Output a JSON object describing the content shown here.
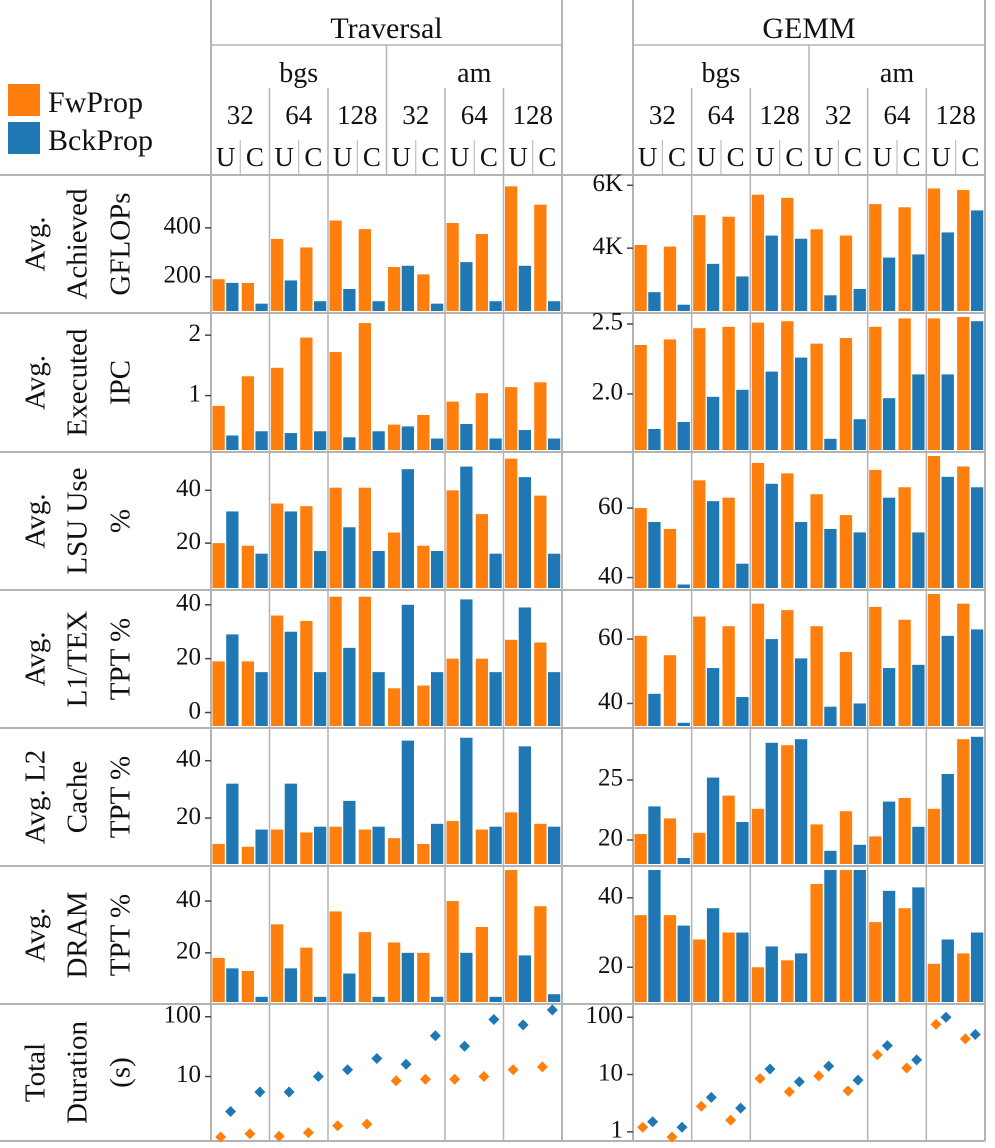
{
  "colors": {
    "fw": "#ff7f0e",
    "bck": "#1f77b4",
    "grid": "#b3b3b3"
  },
  "legend": [
    {
      "label": "FwProp",
      "color": "#ff7f0e"
    },
    {
      "label": "BckProp",
      "color": "#1f77b4"
    }
  ],
  "panels": [
    "Traversal",
    "GEMM"
  ],
  "datasets": [
    "bgs",
    "am"
  ],
  "batch_sizes": [
    "32",
    "64",
    "128"
  ],
  "modes": [
    "U",
    "C"
  ],
  "chart_data": {
    "type": "bar",
    "description_series": [
      "FwProp",
      "BckProp"
    ],
    "rows": [
      {
        "label_lines": [
          "Avg.",
          "Achieved",
          "GFLOPs"
        ],
        "panels": [
          {
            "panel": "Traversal",
            "scale": "linear",
            "ylim": [
              60,
              600
            ],
            "ticks": [
              {
                "v": 200,
                "t": "200"
              },
              {
                "v": 400,
                "t": "400"
              }
            ],
            "fw": [
              190,
              175,
              355,
              320,
              430,
              395,
              240,
              210,
              420,
              375,
              570,
              495
            ],
            "bck": [
              175,
              90,
              185,
              100,
              150,
              100,
              245,
              90,
              260,
              100,
              245,
              100
            ]
          },
          {
            "panel": "GEMM",
            "scale": "linear",
            "ylim": [
              2000,
              6200
            ],
            "ticks": [
              {
                "v": 4000,
                "t": "4K"
              },
              {
                "v": 6000,
                "t": "6K"
              }
            ],
            "fw": [
              4100,
              4050,
              5050,
              5000,
              5700,
              5600,
              4600,
              4400,
              5400,
              5300,
              5900,
              5850
            ],
            "bck": [
              2600,
              2200,
              3500,
              3100,
              4400,
              4300,
              2500,
              2700,
              3700,
              3800,
              4500,
              5200
            ]
          }
        ]
      },
      {
        "label_lines": [
          "Avg.",
          "Executed",
          "IPC"
        ],
        "panels": [
          {
            "panel": "Traversal",
            "scale": "linear",
            "ylim": [
              0.1,
              2.3
            ],
            "ticks": [
              {
                "v": 1,
                "t": "1"
              },
              {
                "v": 2,
                "t": "2"
              }
            ],
            "fw": [
              0.83,
              1.32,
              1.46,
              1.96,
              1.72,
              2.2,
              0.52,
              0.68,
              0.9,
              1.04,
              1.14,
              1.22
            ],
            "bck": [
              0.34,
              0.41,
              0.38,
              0.41,
              0.31,
              0.41,
              0.49,
              0.29,
              0.53,
              0.29,
              0.43,
              0.29
            ]
          },
          {
            "panel": "GEMM",
            "scale": "linear",
            "ylim": [
              1.6,
              2.55
            ],
            "ticks": [
              {
                "v": 2.0,
                "t": "2.0"
              },
              {
                "v": 2.5,
                "t": "2.5"
              }
            ],
            "fw": [
              2.35,
              2.39,
              2.47,
              2.48,
              2.51,
              2.52,
              2.36,
              2.4,
              2.48,
              2.54,
              2.54,
              2.57
            ],
            "bck": [
              1.75,
              1.8,
              1.98,
              2.03,
              2.16,
              2.26,
              1.68,
              1.82,
              1.97,
              2.14,
              2.14,
              2.52
            ]
          }
        ]
      },
      {
        "label_lines": [
          "Avg.",
          "LSU Use",
          "%"
        ],
        "panels": [
          {
            "panel": "Traversal",
            "scale": "linear",
            "ylim": [
              3,
              53
            ],
            "ticks": [
              {
                "v": 20,
                "t": "20"
              },
              {
                "v": 40,
                "t": "40"
              }
            ],
            "fw": [
              20,
              19,
              35,
              34,
              41,
              41,
              24,
              19,
              40,
              31,
              52,
              38
            ],
            "bck": [
              32,
              16,
              32,
              17,
              26,
              17,
              48,
              17,
              49,
              16,
              45,
              16
            ]
          },
          {
            "panel": "GEMM",
            "scale": "linear",
            "ylim": [
              37,
              75
            ],
            "ticks": [
              {
                "v": 40,
                "t": "40"
              },
              {
                "v": 60,
                "t": "60"
              }
            ],
            "fw": [
              60,
              54,
              68,
              63,
              73,
              70,
              64,
              58,
              71,
              66,
              75,
              72
            ],
            "bck": [
              56,
              38,
              62,
              44,
              67,
              56,
              54,
              53,
              63,
              53,
              69,
              66
            ]
          }
        ]
      },
      {
        "label_lines": [
          "Avg.",
          "L1/TEX",
          "TPT %"
        ],
        "panels": [
          {
            "panel": "Traversal",
            "scale": "linear",
            "ylim": [
              -5,
              44
            ],
            "ticks": [
              {
                "v": 0,
                "t": "0"
              },
              {
                "v": 20,
                "t": "20"
              },
              {
                "v": 40,
                "t": "40"
              }
            ],
            "fw": [
              19,
              19,
              36,
              34,
              43,
              43,
              9,
              10,
              20,
              20,
              27,
              26
            ],
            "bck": [
              29,
              15,
              30,
              15,
              24,
              15,
              40,
              15,
              42,
              15,
              39,
              15
            ]
          },
          {
            "panel": "GEMM",
            "scale": "linear",
            "ylim": [
              33,
              74
            ],
            "ticks": [
              {
                "v": 40,
                "t": "40"
              },
              {
                "v": 60,
                "t": "60"
              }
            ],
            "fw": [
              61,
              55,
              67,
              64,
              71,
              69,
              64,
              56,
              70,
              66,
              74,
              71
            ],
            "bck": [
              43,
              34,
              51,
              42,
              60,
              54,
              39,
              40,
              51,
              52,
              61,
              63
            ]
          }
        ]
      },
      {
        "label_lines": [
          "Avg. L2",
          "Cache",
          "TPT %"
        ],
        "panels": [
          {
            "panel": "Traversal",
            "scale": "linear",
            "ylim": [
              4,
              50
            ],
            "ticks": [
              {
                "v": 20,
                "t": "20"
              },
              {
                "v": 40,
                "t": "40"
              }
            ],
            "fw": [
              11,
              10,
              16,
              15,
              17,
              16,
              13,
              11,
              19,
              16,
              22,
              18
            ],
            "bck": [
              32,
              16,
              32,
              17,
              26,
              17,
              47,
              18,
              48,
              17,
              45,
              17
            ]
          },
          {
            "panel": "GEMM",
            "scale": "linear",
            "ylim": [
              18,
              29
            ],
            "ticks": [
              {
                "v": 20,
                "t": "20"
              },
              {
                "v": 25,
                "t": "25"
              }
            ],
            "fw": [
              20.5,
              21.8,
              20.6,
              23.7,
              22.6,
              27.9,
              21.3,
              22.4,
              20.3,
              23.5,
              22.6,
              28.4
            ],
            "bck": [
              22.8,
              18.5,
              25.2,
              21.5,
              28.1,
              28.4,
              19.1,
              19.6,
              23.2,
              21.1,
              25.5,
              28.6
            ]
          }
        ]
      },
      {
        "label_lines": [
          "Avg.",
          "DRAM",
          "TPT %"
        ],
        "panels": [
          {
            "panel": "Traversal",
            "scale": "linear",
            "ylim": [
              1,
              52
            ],
            "ticks": [
              {
                "v": 20,
                "t": "20"
              },
              {
                "v": 40,
                "t": "40"
              }
            ],
            "fw": [
              18,
              13,
              31,
              22,
              36,
              28,
              24,
              20,
              40,
              30,
              52,
              38
            ],
            "bck": [
              14,
              3,
              14,
              3,
              12,
              3,
              20,
              3,
              20,
              3,
              19,
              4
            ]
          },
          {
            "panel": "GEMM",
            "scale": "linear",
            "ylim": [
              10,
              48
            ],
            "ticks": [
              {
                "v": 20,
                "t": "20"
              },
              {
                "v": 40,
                "t": "40"
              }
            ],
            "fw": [
              35,
              35,
              28,
              30,
              20,
              22,
              44,
              48,
              33,
              37,
              21,
              24
            ],
            "bck": [
              48,
              32,
              37,
              30,
              26,
              24,
              50,
              50,
              42,
              43,
              28,
              30
            ]
          }
        ]
      },
      {
        "label_lines": [
          "Total",
          "Duration",
          "(s)"
        ],
        "is_scatter": true,
        "panels": [
          {
            "panel": "Traversal",
            "scale": "log",
            "ylim": [
              0.9,
              140
            ],
            "ticks": [
              {
                "v": 10,
                "t": "10"
              },
              {
                "v": 100,
                "t": "100"
              }
            ],
            "fw": [
              0.95,
              1.1,
              1.0,
              1.15,
              1.5,
              1.6,
              8.5,
              9,
              9,
              10,
              13,
              14.5
            ],
            "bck": [
              2.6,
              5.5,
              5.5,
              10,
              13,
              20,
              16,
              48,
              32,
              90,
              73,
              130
            ]
          },
          {
            "panel": "GEMM",
            "scale": "log",
            "ylim": [
              0.75,
              145
            ],
            "ticks": [
              {
                "v": 1,
                "t": "1"
              },
              {
                "v": 10,
                "t": "10"
              },
              {
                "v": 100,
                "t": "100"
              }
            ],
            "fw": [
              1.2,
              0.8,
              2.8,
              1.6,
              8.5,
              5.0,
              9.5,
              5.2,
              22,
              13,
              75,
              42
            ],
            "bck": [
              1.5,
              1.2,
              4.0,
              2.6,
              12.5,
              7.5,
              14,
              8,
              32,
              18,
              100,
              50
            ]
          }
        ]
      }
    ]
  }
}
